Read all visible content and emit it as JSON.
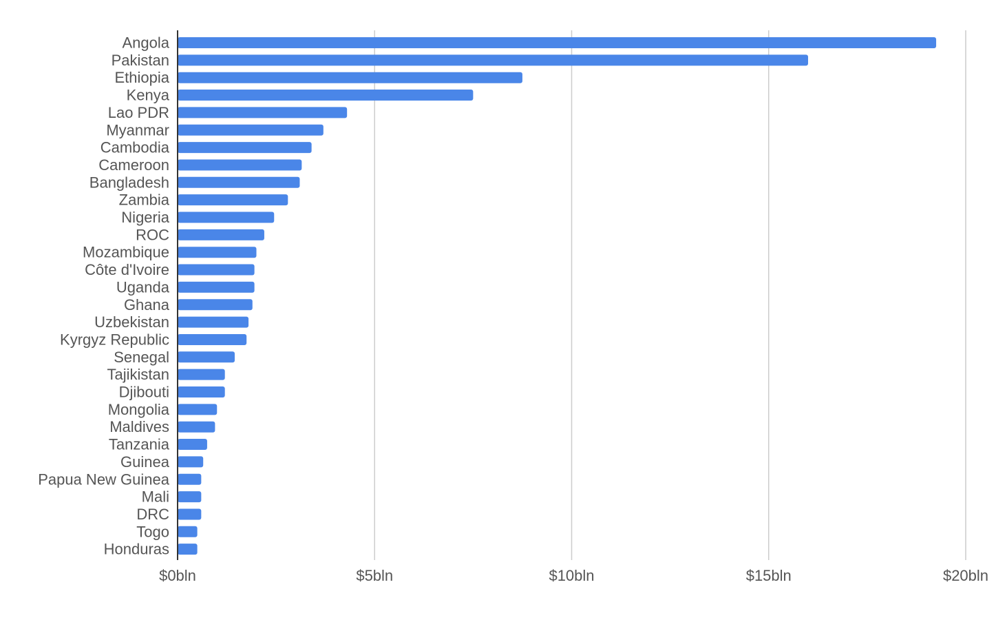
{
  "chart_data": {
    "type": "bar",
    "orientation": "horizontal",
    "title": "",
    "xlabel": "",
    "ylabel": "",
    "categories": [
      "Angola",
      "Pakistan",
      "Ethiopia",
      "Kenya",
      "Lao PDR",
      "Myanmar",
      "Cambodia",
      "Cameroon",
      "Bangladesh",
      "Zambia",
      "Nigeria",
      "ROC",
      "Mozambique",
      "Côte d'Ivoire",
      "Uganda",
      "Ghana",
      "Uzbekistan",
      "Kyrgyz Republic",
      "Senegal",
      "Tajikistan",
      "Djibouti",
      "Mongolia",
      "Maldives",
      "Tanzania",
      "Guinea",
      "Papua New Guinea",
      "Mali",
      "DRC",
      "Togo",
      "Honduras"
    ],
    "values": [
      19.25,
      16.0,
      8.75,
      7.5,
      4.3,
      3.7,
      3.4,
      3.15,
      3.1,
      2.8,
      2.45,
      2.2,
      2.0,
      1.95,
      1.95,
      1.9,
      1.8,
      1.75,
      1.45,
      1.2,
      1.2,
      1.0,
      0.95,
      0.75,
      0.65,
      0.6,
      0.6,
      0.6,
      0.5,
      0.5
    ],
    "xlim": [
      0,
      20
    ],
    "xticks": [
      0,
      5,
      10,
      15,
      20
    ],
    "xtick_labels": [
      "$0bln",
      "$5bln",
      "$10bln",
      "$15bln",
      "$20bln"
    ],
    "grid": "vertical",
    "legend": "none",
    "colors": {
      "bar": "#4a86e8",
      "grid": "#cccccc",
      "axis": "#333333",
      "text": "#555555"
    }
  }
}
